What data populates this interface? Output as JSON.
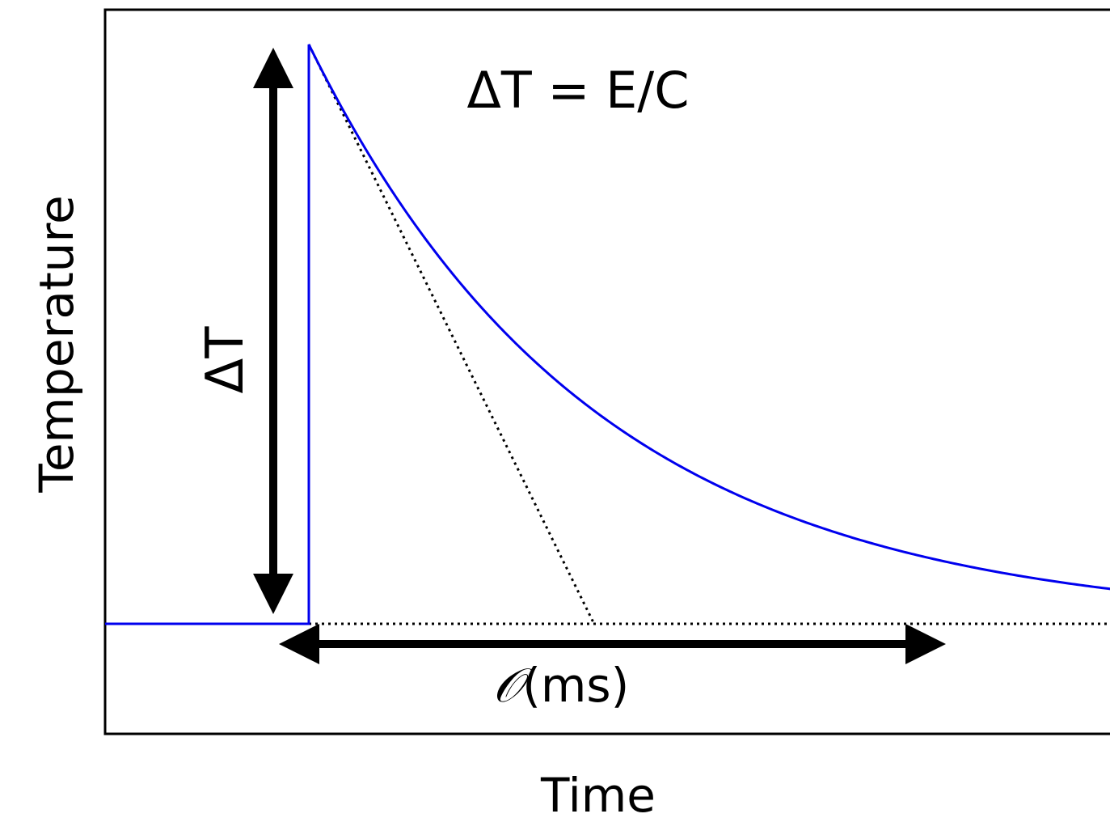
{
  "chart_data": {
    "type": "line",
    "title": "",
    "xlabel": "Time",
    "ylabel": "Temperature",
    "annotations": {
      "equation": "ΔT = E/C",
      "delta_t_label": "ΔT",
      "timescale_prefix": "𝒪",
      "timescale_suffix": "(ms)"
    },
    "grid": false,
    "legend": "none",
    "colors": {
      "pulse": "#0000ee",
      "axes": "#000000",
      "reference": "#000000"
    },
    "pulse": {
      "baseline": 0,
      "peak": 1,
      "onset": 1,
      "decay_time_constant": 1.4,
      "x_range": [
        0,
        5.0
      ],
      "y_range": [
        -0.19,
        1.06
      ]
    },
    "reference_lines": {
      "tangent_intercept_x": 2.4,
      "baseline_dotted_from_x": 1
    }
  }
}
